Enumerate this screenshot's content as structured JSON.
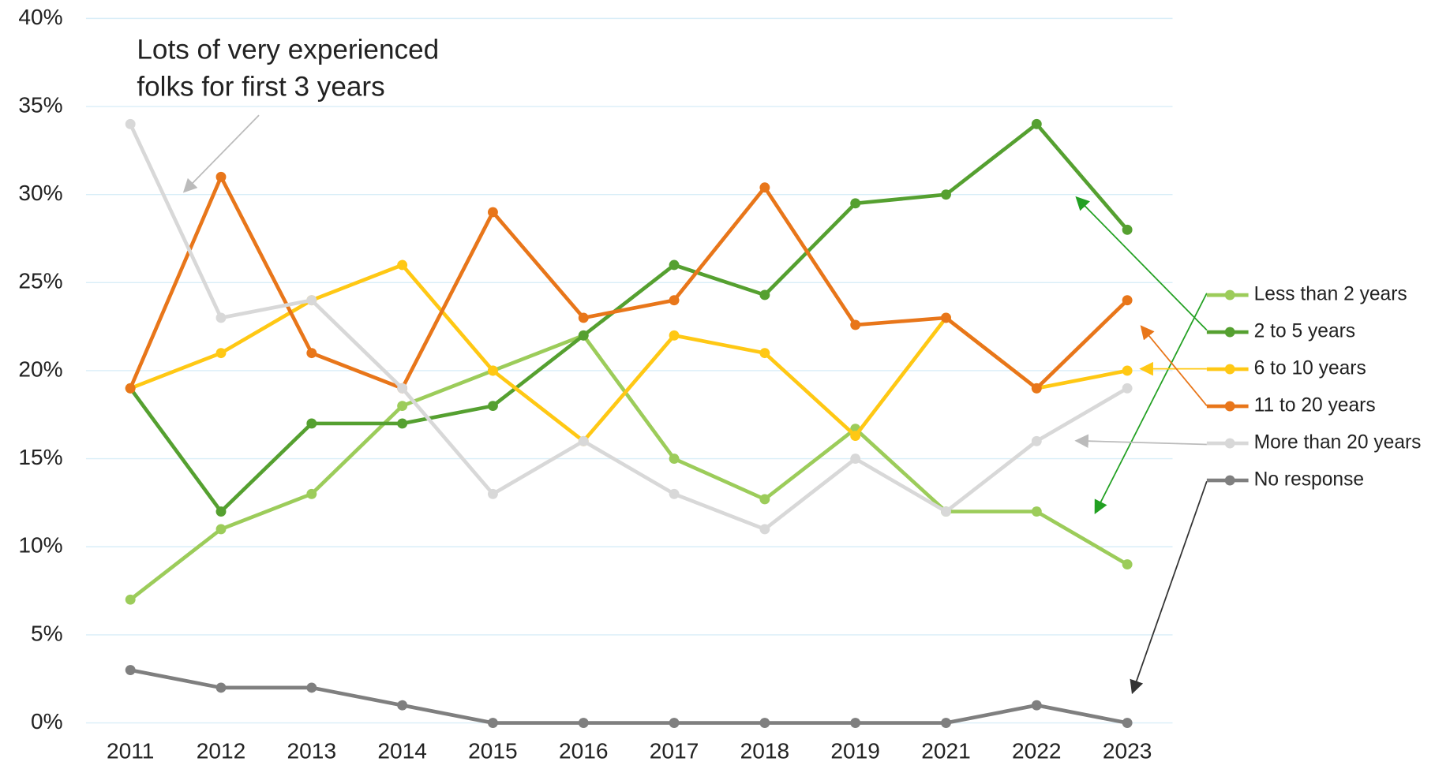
{
  "chart_data": {
    "type": "line",
    "annotation": [
      "Lots of very experienced",
      "folks for first 3 years"
    ],
    "categories": [
      "2011",
      "2012",
      "2013",
      "2014",
      "2015",
      "2016",
      "2017",
      "2018",
      "2019",
      "2021",
      "2022",
      "2023"
    ],
    "series": [
      {
        "name": "Less than 2 years",
        "color": "#9ccc5a",
        "values": [
          7,
          11,
          13,
          18,
          20,
          22,
          15,
          12.7,
          16.7,
          12,
          12,
          9
        ]
      },
      {
        "name": "2 to 5 years",
        "color": "#55a030",
        "values": [
          19,
          12,
          17,
          17,
          18,
          22,
          26,
          24.3,
          29.5,
          30,
          34,
          28
        ]
      },
      {
        "name": "6 to 10 years",
        "color": "#ffc814",
        "values": [
          19,
          21,
          24,
          26,
          20,
          16,
          22,
          21,
          16.3,
          23,
          19,
          20
        ]
      },
      {
        "name": "11 to 20 years",
        "color": "#e8761a",
        "values": [
          19,
          31,
          21,
          19,
          29,
          23,
          24,
          30.4,
          22.6,
          23,
          19,
          24
        ]
      },
      {
        "name": "More than 20 years",
        "color": "#d8d8d8",
        "values": [
          34,
          23,
          24,
          19,
          13,
          16,
          13,
          11,
          15,
          12,
          16,
          19
        ]
      },
      {
        "name": "No response",
        "color": "#7f7f7f",
        "values": [
          3,
          2,
          2,
          1,
          0,
          0,
          0,
          0,
          0,
          0,
          1,
          0
        ]
      }
    ],
    "ylim": [
      0,
      40
    ],
    "yticks": [
      {
        "value": 0,
        "label": "0%"
      },
      {
        "value": 5,
        "label": "5%"
      },
      {
        "value": 10,
        "label": "10%"
      },
      {
        "value": 15,
        "label": "15%"
      },
      {
        "value": 20,
        "label": "20%"
      },
      {
        "value": 25,
        "label": "25%"
      },
      {
        "value": 30,
        "label": "30%"
      },
      {
        "value": 35,
        "label": "35%"
      },
      {
        "value": 40,
        "label": "40%"
      }
    ],
    "grid": true
  }
}
